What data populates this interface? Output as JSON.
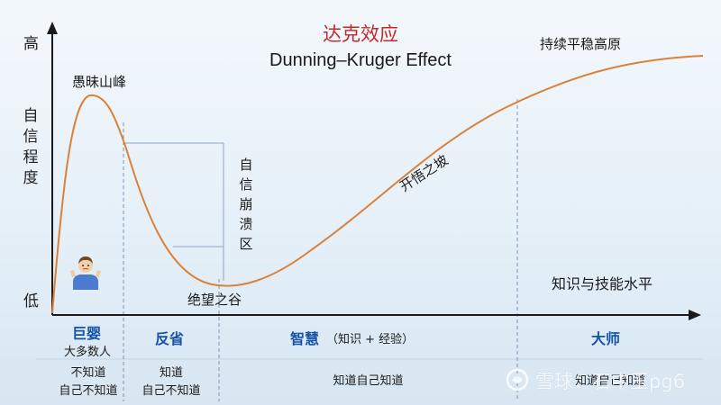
{
  "title": "达克效应",
  "subtitle": "Dunning–Kruger Effect",
  "axes": {
    "y_label": "自信程度",
    "y_high": "高",
    "y_low": "低",
    "x_label": "知识与技能水平"
  },
  "annotations": {
    "peak": "愚昧山峰",
    "collapse": "自信崩溃区",
    "valley": "绝望之谷",
    "slope": "开悟之坡",
    "plateau": "持续平稳高原"
  },
  "stages": [
    {
      "name": "巨婴",
      "sub": "大多数人",
      "knowledge": [
        "不知道",
        "自己不知道"
      ]
    },
    {
      "name": "反省",
      "sub": "",
      "knowledge": [
        "知道",
        "自己不知道"
      ]
    },
    {
      "name": "智慧",
      "sub": "（知识 + 经验）",
      "knowledge": [
        "知道自己知道"
      ]
    },
    {
      "name": "大师",
      "sub": "",
      "knowledge": [
        "知道自己知道"
      ]
    }
  ],
  "watermark": "雪球：石中玉pg6",
  "icons": {
    "avatar": "shrugging-person-icon",
    "watermark": "snowball-logo-icon"
  },
  "colors": {
    "curve": "#d9823b",
    "title": "#c62828",
    "stage_label": "#1553a8",
    "axis": "#1a1a1a",
    "guide": "#7f93b5"
  }
}
